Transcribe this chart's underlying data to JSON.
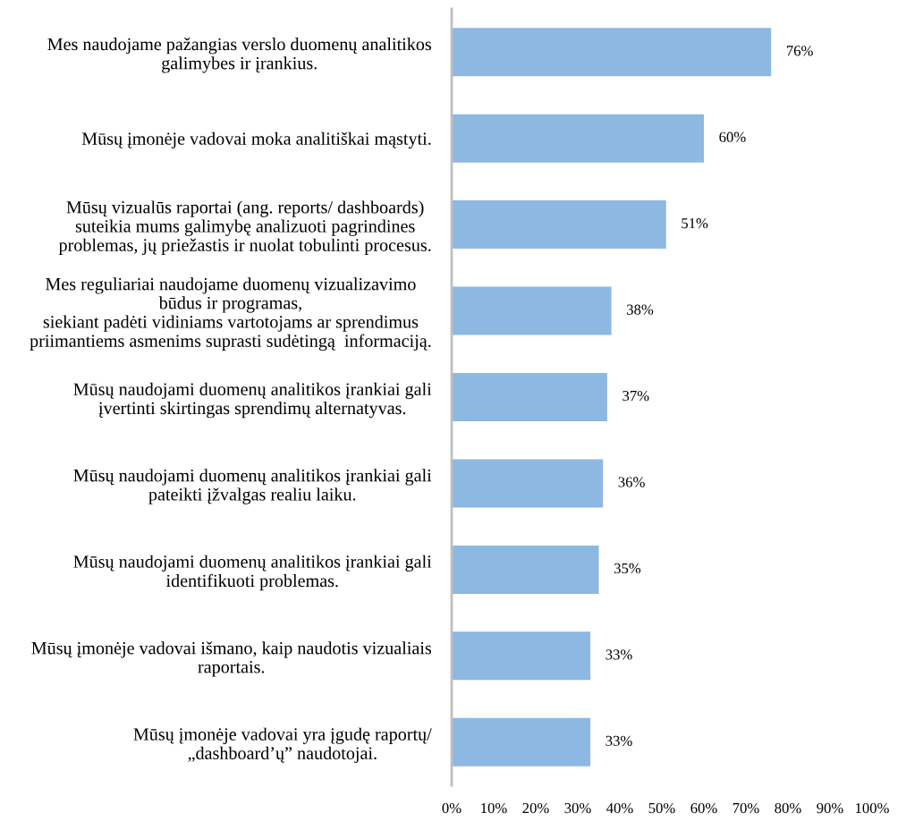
{
  "chart_data": {
    "type": "bar",
    "orientation": "horizontal",
    "categories": [
      "Mes naudojame pažangias verslo duomenų analitikos\ngalimybes ir įrankius.",
      "Mūsų įmonėje vadovai moka analitiškai mąstyti.",
      "Mūsų vizualūs raportai (ang. reports/ dashboards)\nsuteikia mums galimybę analizuoti pagrindines\nproblemas, jų priežastis ir nuolat tobulinti procesus.",
      "Mes reguliariai naudojame duomenų vizualizavimo\nbūdus ir programas,\nsiekiant padėti vidiniams vartotojams ar sprendimus\npriimantiems asmenims suprasti sudėtingą  informaciją.",
      "Mūsų naudojami duomenų analitikos įrankiai gali\nįvertinti skirtingas sprendimų alternatyvas.",
      "Mūsų naudojami duomenų analitikos įrankiai gali\npateikti įžvalgas realiu laiku.",
      "Mūsų naudojami duomenų analitikos įrankiai gali\nidentifikuoti problemas.",
      "Mūsų įmonėje vadovai išmano, kaip naudotis vizualiais\nraportais.",
      "Mūsų įmonėje vadovai yra įgudę raportų/\n„dashboard’ų” naudotojai."
    ],
    "values": [
      76,
      60,
      51,
      38,
      37,
      36,
      35,
      33,
      33
    ],
    "value_labels": [
      "76%",
      "60%",
      "51%",
      "38%",
      "37%",
      "36%",
      "35%",
      "33%",
      "33%"
    ],
    "color": "#8db8e2",
    "xlim": [
      0,
      100
    ],
    "xticks": [
      {
        "value": 0,
        "label": "0%"
      },
      {
        "value": 10,
        "label": "10%"
      },
      {
        "value": 20,
        "label": "20%"
      },
      {
        "value": 30,
        "label": "30%"
      },
      {
        "value": 40,
        "label": "40%"
      },
      {
        "value": 50,
        "label": "50%"
      },
      {
        "value": 60,
        "label": "60%"
      },
      {
        "value": 70,
        "label": "70%"
      },
      {
        "value": 80,
        "label": "80%"
      },
      {
        "value": 90,
        "label": "90%"
      },
      {
        "value": 100,
        "label": "100%"
      }
    ],
    "grid": false
  }
}
